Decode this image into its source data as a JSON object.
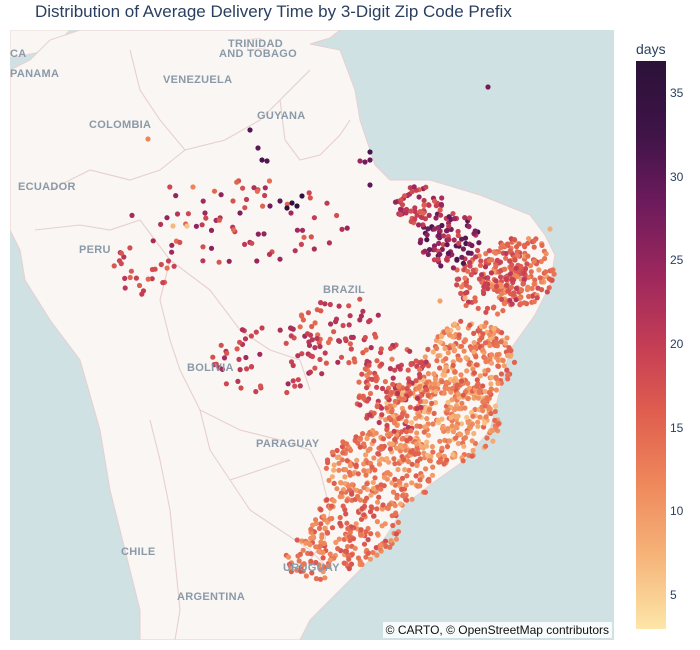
{
  "title": "Distribution of Average Delivery Time by 3-Digit Zip Code Prefix",
  "attribution": "© CARTO, © OpenStreetMap contributors",
  "map_labels": {
    "ca": "CA",
    "panama": "PANAMA",
    "trinidad_line1": "TRINIDAD",
    "trinidad_line2": "AND TOBAGO",
    "venezuela": "VENEZUELA",
    "guyana": "GUYANA",
    "colombia": "COLOMBIA",
    "ecuador": "ECUADOR",
    "peru": "PERU",
    "brazil": "BRAZIL",
    "bolivia": "BOLIVIA",
    "paraguay": "PARAGUAY",
    "chile": "CHILE",
    "uruguay": "URUGUAY",
    "argentina": "ARGENTINA"
  },
  "colorbar": {
    "title": "days",
    "min": 3,
    "max": 37,
    "ticks": [
      5,
      10,
      15,
      20,
      25,
      30,
      35
    ],
    "colors": [
      "#fde6a8",
      "#f6b57a",
      "#ef8a5c",
      "#e0604f",
      "#c43d55",
      "#9c275d",
      "#6d1b5c",
      "#3e1447",
      "#2b1138"
    ]
  },
  "colors": {
    "ocean": "#cfe1e3",
    "land": "#f9f6f3",
    "border": "#e8cfd0"
  }
}
